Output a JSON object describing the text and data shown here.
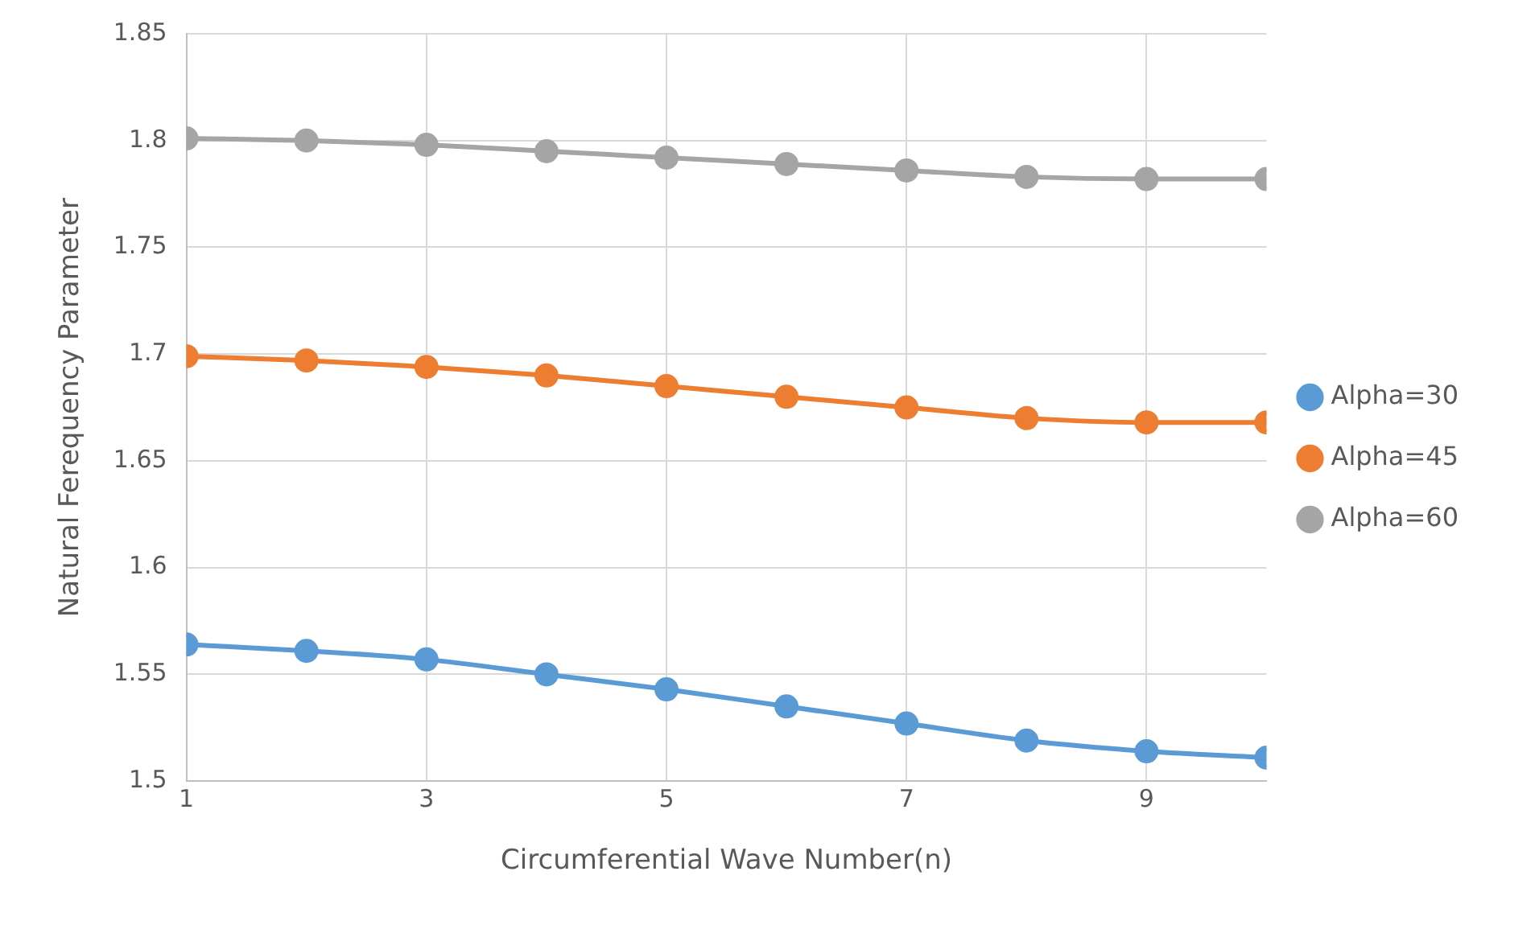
{
  "chart_data": {
    "type": "line",
    "xlabel": "Circumferential Wave Number(n)",
    "ylabel": "Natural Ferequency Parameter",
    "x": [
      1,
      2,
      3,
      4,
      5,
      6,
      7,
      8,
      9,
      10
    ],
    "series": [
      {
        "name": "Alpha=30",
        "color": "#5b9bd5",
        "values": [
          1.564,
          1.561,
          1.557,
          1.55,
          1.543,
          1.535,
          1.527,
          1.519,
          1.514,
          1.511
        ]
      },
      {
        "name": "Alpha=45",
        "color": "#ed7d31",
        "values": [
          1.699,
          1.697,
          1.694,
          1.69,
          1.685,
          1.68,
          1.675,
          1.67,
          1.668,
          1.668
        ]
      },
      {
        "name": "Alpha=60",
        "color": "#a5a5a5",
        "values": [
          1.801,
          1.8,
          1.798,
          1.795,
          1.792,
          1.789,
          1.786,
          1.783,
          1.782,
          1.782
        ]
      }
    ],
    "xlim": [
      1,
      10
    ],
    "xticks": [
      1,
      3,
      5,
      7,
      9
    ],
    "ylim": [
      1.5,
      1.85
    ],
    "yticks": [
      1.5,
      1.55,
      1.6,
      1.65,
      1.7,
      1.75,
      1.8,
      1.85
    ],
    "grid": true,
    "legend": "right",
    "marker": "circle",
    "line_style": "solid"
  }
}
